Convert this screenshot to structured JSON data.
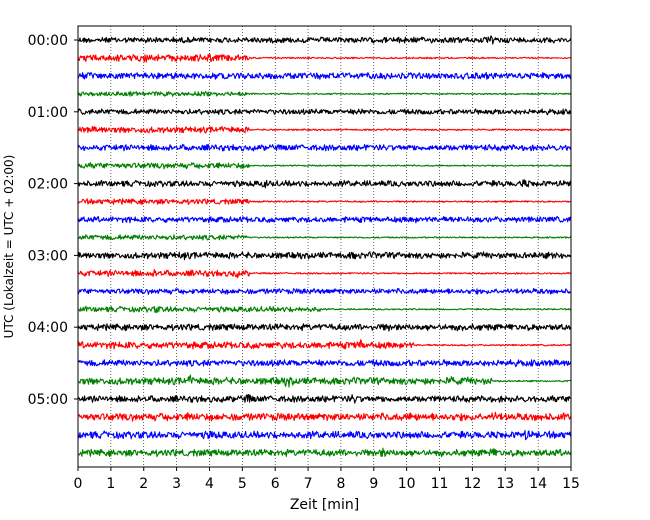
{
  "chart_data": {
    "type": "line",
    "title": "",
    "xlabel": "Zeit  [min]",
    "ylabel": "UTC (Lokalzeit = UTC + 02:00)",
    "xlim": [
      0,
      15
    ],
    "x_ticks": [
      0,
      1,
      2,
      3,
      4,
      5,
      6,
      7,
      8,
      9,
      10,
      11,
      12,
      13,
      14,
      15
    ],
    "y_tick_labels": [
      "00:00",
      "01:00",
      "02:00",
      "03:00",
      "04:00",
      "05:00"
    ],
    "trace_interval_min": 15,
    "grid": "vertical dotted at each minute",
    "legend": "none",
    "series_colors": [
      "#000000",
      "#ff0000",
      "#0000ff",
      "#008000"
    ],
    "trace_count": 24,
    "trace_start_times": [
      "00:00",
      "00:15",
      "00:30",
      "00:45",
      "01:00",
      "01:15",
      "01:30",
      "01:45",
      "02:00",
      "02:15",
      "02:30",
      "02:45",
      "03:00",
      "03:15",
      "03:30",
      "03:45",
      "04:00",
      "04:15",
      "04:30",
      "04:45",
      "05:00",
      "05:15",
      "05:30",
      "05:45"
    ],
    "traces": [
      {
        "color": "#000000",
        "sections": [
          [
            0,
            15,
            3.2
          ]
        ],
        "events": [
          [
            9.9,
            2.5
          ],
          [
            12.6,
            2
          ]
        ]
      },
      {
        "color": "#ff0000",
        "sections": [
          [
            0,
            5.2,
            3.8
          ],
          [
            5.2,
            15,
            0.9
          ]
        ],
        "events": [
          [
            2.1,
            2.5
          ],
          [
            4.0,
            2
          ]
        ]
      },
      {
        "color": "#0000ff",
        "sections": [
          [
            0,
            15,
            3.6
          ]
        ],
        "events": [
          [
            2.0,
            2
          ],
          [
            12.3,
            2
          ]
        ]
      },
      {
        "color": "#008000",
        "sections": [
          [
            0,
            5.2,
            2.6
          ],
          [
            5.2,
            15,
            0.8
          ]
        ],
        "events": []
      },
      {
        "color": "#000000",
        "sections": [
          [
            0,
            15,
            3.0
          ]
        ],
        "events": [
          [
            8.6,
            1.8
          ]
        ]
      },
      {
        "color": "#ff0000",
        "sections": [
          [
            0,
            5.2,
            3.5
          ],
          [
            5.2,
            15,
            0.9
          ]
        ],
        "events": []
      },
      {
        "color": "#0000ff",
        "sections": [
          [
            0,
            15,
            3.4
          ]
        ],
        "events": []
      },
      {
        "color": "#008000",
        "sections": [
          [
            0,
            5.2,
            3.2
          ],
          [
            5.2,
            15,
            0.8
          ]
        ],
        "events": [
          [
            4.2,
            1.5
          ]
        ]
      },
      {
        "color": "#000000",
        "sections": [
          [
            0,
            15,
            3.3
          ]
        ],
        "events": [
          [
            5.7,
            2
          ],
          [
            13.6,
            2.5
          ]
        ]
      },
      {
        "color": "#ff0000",
        "sections": [
          [
            0,
            5.2,
            3.0
          ],
          [
            5.2,
            15,
            0.9
          ]
        ],
        "events": []
      },
      {
        "color": "#0000ff",
        "sections": [
          [
            0,
            15,
            3.2
          ]
        ],
        "events": [
          [
            10.2,
            1.5
          ]
        ]
      },
      {
        "color": "#008000",
        "sections": [
          [
            0,
            5.2,
            2.9
          ],
          [
            5.2,
            15,
            0.8
          ]
        ],
        "events": []
      },
      {
        "color": "#000000",
        "sections": [
          [
            0,
            15,
            3.6
          ]
        ],
        "events": [
          [
            3.2,
            2
          ],
          [
            8.4,
            1.8
          ]
        ]
      },
      {
        "color": "#ff0000",
        "sections": [
          [
            0,
            5.2,
            3.4
          ],
          [
            5.2,
            15,
            0.9
          ]
        ],
        "events": [
          [
            2.4,
            2
          ],
          [
            4.8,
            2
          ]
        ]
      },
      {
        "color": "#0000ff",
        "sections": [
          [
            0,
            15,
            3.0
          ]
        ],
        "events": []
      },
      {
        "color": "#008000",
        "sections": [
          [
            0,
            7.4,
            3.0
          ],
          [
            7.4,
            15,
            0.8
          ]
        ],
        "events": [
          [
            2.4,
            1.6
          ]
        ]
      },
      {
        "color": "#000000",
        "sections": [
          [
            0,
            15,
            3.6
          ]
        ],
        "events": [
          [
            11.7,
            2.5
          ],
          [
            9.4,
            2
          ]
        ]
      },
      {
        "color": "#ff0000",
        "sections": [
          [
            0,
            10.2,
            3.8
          ],
          [
            10.2,
            15,
            0.9
          ]
        ],
        "events": [
          [
            8.6,
            4
          ],
          [
            7.4,
            2
          ]
        ]
      },
      {
        "color": "#0000ff",
        "sections": [
          [
            0,
            15,
            3.6
          ]
        ],
        "events": []
      },
      {
        "color": "#008000",
        "sections": [
          [
            0,
            12.6,
            4.0
          ],
          [
            12.6,
            15,
            0.9
          ]
        ],
        "events": [
          [
            3.4,
            3
          ],
          [
            6.4,
            3.5
          ],
          [
            11.4,
            2.5
          ]
        ]
      },
      {
        "color": "#000000",
        "sections": [
          [
            0,
            15,
            3.6
          ]
        ],
        "events": [
          [
            5.2,
            2.5
          ],
          [
            8.4,
            2.5
          ]
        ]
      },
      {
        "color": "#ff0000",
        "sections": [
          [
            0,
            15,
            4.2
          ]
        ],
        "events": [
          [
            3.4,
            3
          ],
          [
            10.2,
            2.5
          ],
          [
            12.7,
            2.5
          ],
          [
            14.2,
            2.5
          ]
        ]
      },
      {
        "color": "#0000ff",
        "sections": [
          [
            0,
            15,
            4.0
          ]
        ],
        "events": [
          [
            4.1,
            3
          ],
          [
            13.6,
            3
          ]
        ]
      },
      {
        "color": "#008000",
        "sections": [
          [
            0,
            15,
            3.8
          ]
        ],
        "events": [
          [
            9.3,
            2.5
          ],
          [
            12.6,
            2.5
          ]
        ]
      }
    ]
  }
}
